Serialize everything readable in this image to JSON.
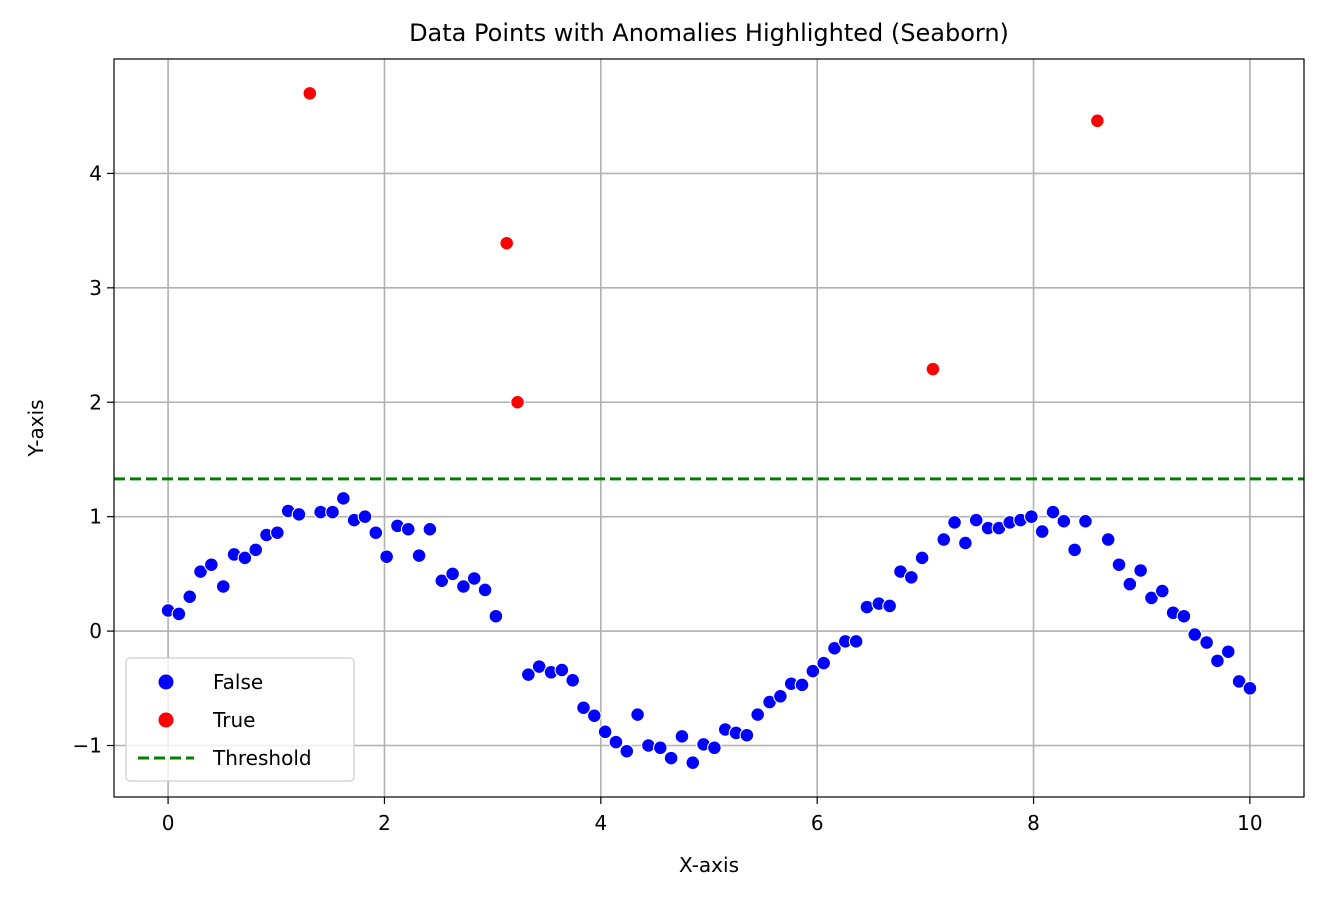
{
  "chart_data": {
    "type": "scatter",
    "title": "Data Points with Anomalies Highlighted (Seaborn)",
    "xlabel": "X-axis",
    "ylabel": "Y-axis",
    "xlim": [
      -0.5,
      10.5
    ],
    "ylim": [
      -1.45,
      5.0
    ],
    "xticks": [
      0,
      2,
      4,
      6,
      8,
      10
    ],
    "xtick_labels": [
      "0",
      "2",
      "4",
      "6",
      "8",
      "10"
    ],
    "yticks": [
      -1,
      0,
      1,
      2,
      3,
      4
    ],
    "ytick_labels": [
      "−1",
      "0",
      "1",
      "2",
      "3",
      "4"
    ],
    "grid": true,
    "legend_position": "lower-left",
    "threshold": {
      "name": "Threshold",
      "y": 1.33,
      "color": "#008000",
      "style": "dashed"
    },
    "series": [
      {
        "name": "False",
        "color": "#0000ff",
        "points": [
          [
            0.0,
            0.18
          ],
          [
            0.1,
            0.15
          ],
          [
            0.2,
            0.3
          ],
          [
            0.3,
            0.52
          ],
          [
            0.4,
            0.58
          ],
          [
            0.51,
            0.39
          ],
          [
            0.61,
            0.67
          ],
          [
            0.71,
            0.64
          ],
          [
            0.81,
            0.71
          ],
          [
            0.91,
            0.84
          ],
          [
            1.01,
            0.86
          ],
          [
            1.11,
            1.05
          ],
          [
            1.21,
            1.02
          ],
          [
            1.41,
            1.04
          ],
          [
            1.52,
            1.04
          ],
          [
            1.62,
            1.16
          ],
          [
            1.72,
            0.97
          ],
          [
            1.82,
            1.0
          ],
          [
            1.92,
            0.86
          ],
          [
            2.02,
            0.65
          ],
          [
            2.12,
            0.92
          ],
          [
            2.22,
            0.89
          ],
          [
            2.32,
            0.66
          ],
          [
            2.42,
            0.89
          ],
          [
            2.53,
            0.44
          ],
          [
            2.63,
            0.5
          ],
          [
            2.73,
            0.39
          ],
          [
            2.83,
            0.46
          ],
          [
            2.93,
            0.36
          ],
          [
            3.03,
            0.13
          ],
          [
            3.33,
            -0.38
          ],
          [
            3.43,
            -0.31
          ],
          [
            3.54,
            -0.36
          ],
          [
            3.64,
            -0.34
          ],
          [
            3.74,
            -0.43
          ],
          [
            3.84,
            -0.67
          ],
          [
            3.94,
            -0.74
          ],
          [
            4.04,
            -0.88
          ],
          [
            4.14,
            -0.97
          ],
          [
            4.24,
            -1.05
          ],
          [
            4.34,
            -0.73
          ],
          [
            4.44,
            -1.0
          ],
          [
            4.55,
            -1.02
          ],
          [
            4.65,
            -1.11
          ],
          [
            4.75,
            -0.92
          ],
          [
            4.85,
            -1.15
          ],
          [
            4.95,
            -0.99
          ],
          [
            5.05,
            -1.02
          ],
          [
            5.15,
            -0.86
          ],
          [
            5.25,
            -0.89
          ],
          [
            5.35,
            -0.91
          ],
          [
            5.45,
            -0.73
          ],
          [
            5.56,
            -0.62
          ],
          [
            5.66,
            -0.57
          ],
          [
            5.76,
            -0.46
          ],
          [
            5.86,
            -0.47
          ],
          [
            5.96,
            -0.35
          ],
          [
            6.06,
            -0.28
          ],
          [
            6.16,
            -0.15
          ],
          [
            6.26,
            -0.09
          ],
          [
            6.36,
            -0.09
          ],
          [
            6.46,
            0.21
          ],
          [
            6.57,
            0.24
          ],
          [
            6.67,
            0.22
          ],
          [
            6.77,
            0.52
          ],
          [
            6.87,
            0.47
          ],
          [
            6.97,
            0.64
          ],
          [
            7.17,
            0.8
          ],
          [
            7.27,
            0.95
          ],
          [
            7.37,
            0.77
          ],
          [
            7.47,
            0.97
          ],
          [
            7.58,
            0.9
          ],
          [
            7.68,
            0.9
          ],
          [
            7.78,
            0.95
          ],
          [
            7.88,
            0.97
          ],
          [
            7.98,
            1.0
          ],
          [
            8.08,
            0.87
          ],
          [
            8.18,
            1.04
          ],
          [
            8.28,
            0.96
          ],
          [
            8.38,
            0.71
          ],
          [
            8.48,
            0.96
          ],
          [
            8.69,
            0.8
          ],
          [
            8.79,
            0.58
          ],
          [
            8.89,
            0.41
          ],
          [
            8.99,
            0.53
          ],
          [
            9.09,
            0.29
          ],
          [
            9.19,
            0.35
          ],
          [
            9.29,
            0.16
          ],
          [
            9.39,
            0.13
          ],
          [
            9.49,
            -0.03
          ],
          [
            9.6,
            -0.1
          ],
          [
            9.7,
            -0.26
          ],
          [
            9.8,
            -0.18
          ],
          [
            9.9,
            -0.44
          ],
          [
            10.0,
            -0.5
          ]
        ]
      },
      {
        "name": "True",
        "color": "#ff0000",
        "points": [
          [
            1.31,
            4.7
          ],
          [
            3.13,
            3.39
          ],
          [
            3.23,
            2.0
          ],
          [
            7.07,
            2.29
          ],
          [
            8.59,
            4.46
          ]
        ]
      }
    ]
  }
}
